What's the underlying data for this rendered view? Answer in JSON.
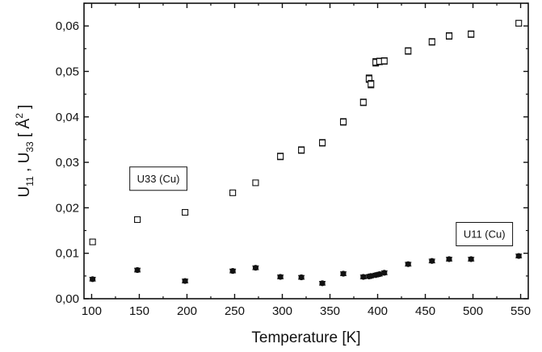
{
  "chart_data": {
    "type": "scatter",
    "xlabel": "Temperature [K]",
    "ylabel": "U11 , U33 [Å²]",
    "ylabel_parts": {
      "u": "U",
      "sub11": "11",
      "sep": " , ",
      "sub33": "33",
      "bracket_open": " [ Å",
      "sup": "2",
      "bracket_close": " ]"
    },
    "xlim": [
      92,
      558
    ],
    "ylim": [
      0,
      0.065
    ],
    "xticks": [
      100,
      150,
      200,
      250,
      300,
      350,
      400,
      450,
      500,
      550
    ],
    "xtick_labels": [
      "100",
      "150",
      "200",
      "250",
      "300",
      "350",
      "400",
      "450",
      "500",
      "550"
    ],
    "yticks": [
      0,
      0.01,
      0.02,
      0.03,
      0.04,
      0.05,
      0.06
    ],
    "ytick_labels": [
      "0,00",
      "0,01",
      "0,02",
      "0,03",
      "0,04",
      "0,05",
      "0,06"
    ],
    "grid": false,
    "series": [
      {
        "name": "U33 (Cu)",
        "marker": "open-square",
        "color": "#111111",
        "x": [
          101,
          148,
          198,
          248,
          272,
          298,
          320,
          342,
          364,
          385,
          391,
          393,
          398,
          402,
          407,
          432,
          457,
          475,
          498,
          548
        ],
        "y": [
          0.0125,
          0.0174,
          0.019,
          0.0233,
          0.0255,
          0.0313,
          0.0327,
          0.0343,
          0.0389,
          0.0432,
          0.0484,
          0.0472,
          0.052,
          0.0522,
          0.0523,
          0.0545,
          0.0565,
          0.0578,
          0.0582,
          0.0606
        ],
        "err": [
          0.0005,
          0.0005,
          0.0005,
          0.0005,
          0.0005,
          0.0007,
          0.0007,
          0.0007,
          0.0007,
          0.0007,
          0.0008,
          0.0008,
          0.0008,
          0.0007,
          0.0007,
          0.0007,
          0.0007,
          0.0007,
          0.0007,
          0.0006
        ]
      },
      {
        "name": "U11 (Cu)",
        "marker": "filled-circle",
        "color": "#111111",
        "x": [
          101,
          148,
          198,
          248,
          272,
          298,
          320,
          342,
          364,
          385,
          391,
          393,
          398,
          402,
          407,
          432,
          457,
          475,
          498,
          548
        ],
        "y": [
          0.0043,
          0.0063,
          0.0039,
          0.0061,
          0.0068,
          0.0048,
          0.0047,
          0.0034,
          0.0055,
          0.0048,
          0.0049,
          0.005,
          0.0052,
          0.0054,
          0.0057,
          0.0076,
          0.0083,
          0.0087,
          0.0087,
          0.0094
        ],
        "err": [
          0.0004,
          0.0004,
          0.0004,
          0.0004,
          0.0004,
          0.0004,
          0.0004,
          0.0004,
          0.0004,
          0.0004,
          0.0004,
          0.0004,
          0.0004,
          0.0004,
          0.0004,
          0.0004,
          0.0004,
          0.0004,
          0.0004,
          0.0004
        ]
      }
    ],
    "annotations": [
      {
        "text": "U33 (Cu)",
        "series": "U33 (Cu)",
        "anchor_x": 170,
        "anchor_y": 0.0265
      },
      {
        "text": "U11 (Cu)",
        "series": "U11 (Cu)",
        "anchor_x": 512,
        "anchor_y": 0.0143
      }
    ]
  }
}
